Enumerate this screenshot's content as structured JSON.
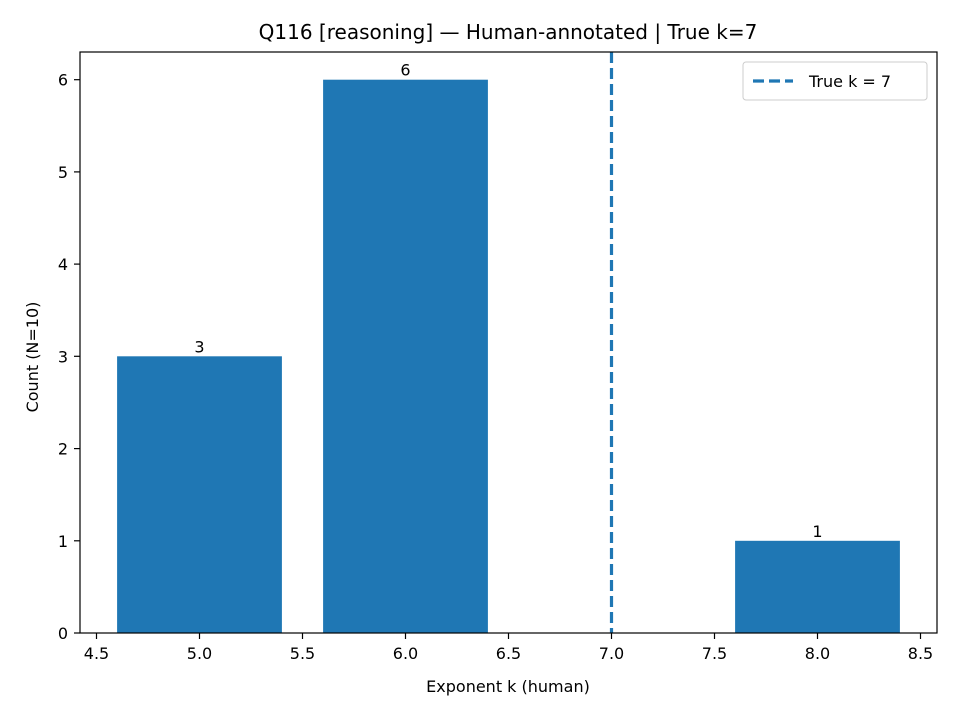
{
  "chart_data": {
    "type": "bar",
    "title": "Q116 [reasoning] — Human-annotated | True k=7",
    "xlabel": "Exponent k (human)",
    "ylabel": "Count (N=10)",
    "x": [
      5,
      6,
      8
    ],
    "values": [
      3,
      6,
      1
    ],
    "bar_width": 0.8,
    "xlim": [
      4.42,
      8.58
    ],
    "ylim": [
      0,
      6.3
    ],
    "xticks": [
      4.5,
      5.0,
      5.5,
      6.0,
      6.5,
      7.0,
      7.5,
      8.0,
      8.5
    ],
    "xtick_labels": [
      "4.5",
      "5.0",
      "5.5",
      "6.0",
      "6.5",
      "7.0",
      "7.5",
      "8.0",
      "8.5"
    ],
    "yticks": [
      0,
      1,
      2,
      3,
      4,
      5,
      6
    ],
    "ytick_labels": [
      "0",
      "1",
      "2",
      "3",
      "4",
      "5",
      "6"
    ],
    "data_labels": [
      "3",
      "6",
      "1"
    ],
    "reference_line": {
      "x": 7,
      "style": "dashed",
      "label": "True k = 7"
    },
    "legend": {
      "placement": "top-right",
      "entries": [
        "True k = 7"
      ]
    },
    "grid": false,
    "colors": {
      "bar": "#1f77b4",
      "reference_line": "#1f77b4",
      "axes": "#000000"
    }
  }
}
